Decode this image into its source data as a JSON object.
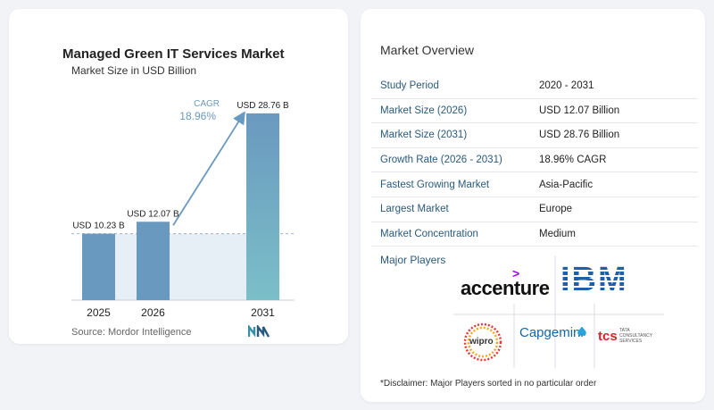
{
  "chart_data": {
    "type": "bar",
    "title": "Managed Green IT Services Market",
    "subtitle": "Market Size in USD Billion",
    "categories": [
      "2025",
      "2026",
      "2031"
    ],
    "values": [
      10.23,
      12.07,
      28.76
    ],
    "value_labels": [
      "USD 10.23 B",
      "USD 12.07 B",
      "USD 28.76 B"
    ],
    "cagr_label": "CAGR",
    "cagr_value": "18.96%",
    "source": "Source: Mordor Intelligence",
    "bar_color": "#6a99bf",
    "bar_color_highlight": "#7bbfc8"
  },
  "overview": {
    "title": "Market Overview",
    "rows": [
      {
        "key": "Study Period",
        "value": "2020 - 2031"
      },
      {
        "key": "Market Size (2026)",
        "value": "USD 12.07 Billion"
      },
      {
        "key": "Market Size (2031)",
        "value": "USD 28.76 Billion"
      },
      {
        "key": "Growth Rate (2026 - 2031)",
        "value": "18.96% CAGR"
      },
      {
        "key": "Fastest Growing Market",
        "value": "Asia-Pacific"
      },
      {
        "key": "Largest Market",
        "value": "Europe"
      },
      {
        "key": "Market Concentration",
        "value": "Medium"
      }
    ]
  },
  "players": {
    "title": "Major Players",
    "logos": {
      "accenture": "accenture",
      "ibm": "IBM",
      "wipro": "wipro",
      "capgemini": "Capgemini",
      "tcs": "tcs",
      "tcs_sub1": "TATA",
      "tcs_sub2": "CONSULTANCY",
      "tcs_sub3": "SERVICES"
    }
  },
  "disclaimer": "*Disclaimer: Major Players sorted in no particular order"
}
